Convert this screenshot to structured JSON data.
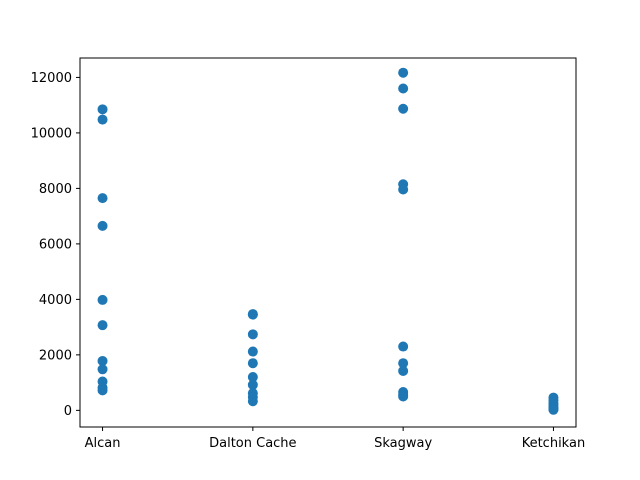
{
  "chart_data": {
    "type": "scatter",
    "categories": [
      "Alcan",
      "Dalton Cache",
      "Skagway",
      "Ketchikan"
    ],
    "series": [
      {
        "color": "#1f77b4",
        "points": [
          {
            "x": "Alcan",
            "y": 10850
          },
          {
            "x": "Alcan",
            "y": 10480
          },
          {
            "x": "Alcan",
            "y": 7650
          },
          {
            "x": "Alcan",
            "y": 6650
          },
          {
            "x": "Alcan",
            "y": 3980
          },
          {
            "x": "Alcan",
            "y": 3070
          },
          {
            "x": "Alcan",
            "y": 1780
          },
          {
            "x": "Alcan",
            "y": 1480
          },
          {
            "x": "Alcan",
            "y": 1040
          },
          {
            "x": "Alcan",
            "y": 820
          },
          {
            "x": "Alcan",
            "y": 720
          },
          {
            "x": "Dalton Cache",
            "y": 3470
          },
          {
            "x": "Dalton Cache",
            "y": 3450
          },
          {
            "x": "Dalton Cache",
            "y": 2740
          },
          {
            "x": "Dalton Cache",
            "y": 2120
          },
          {
            "x": "Dalton Cache",
            "y": 1700
          },
          {
            "x": "Dalton Cache",
            "y": 1200
          },
          {
            "x": "Dalton Cache",
            "y": 920
          },
          {
            "x": "Dalton Cache",
            "y": 620
          },
          {
            "x": "Dalton Cache",
            "y": 480
          },
          {
            "x": "Dalton Cache",
            "y": 330
          },
          {
            "x": "Skagway",
            "y": 12170
          },
          {
            "x": "Skagway",
            "y": 11600
          },
          {
            "x": "Skagway",
            "y": 10870
          },
          {
            "x": "Skagway",
            "y": 8150
          },
          {
            "x": "Skagway",
            "y": 7960
          },
          {
            "x": "Skagway",
            "y": 2300
          },
          {
            "x": "Skagway",
            "y": 1700
          },
          {
            "x": "Skagway",
            "y": 1420
          },
          {
            "x": "Skagway",
            "y": 660
          },
          {
            "x": "Skagway",
            "y": 560
          },
          {
            "x": "Skagway",
            "y": 500
          },
          {
            "x": "Ketchikan",
            "y": 460
          },
          {
            "x": "Ketchikan",
            "y": 360
          },
          {
            "x": "Ketchikan",
            "y": 260
          },
          {
            "x": "Ketchikan",
            "y": 180
          },
          {
            "x": "Ketchikan",
            "y": 100
          },
          {
            "x": "Ketchikan",
            "y": 50
          },
          {
            "x": "Ketchikan",
            "y": 20
          }
        ]
      }
    ],
    "y_ticks": [
      0,
      2000,
      4000,
      6000,
      8000,
      10000,
      12000
    ],
    "ylim": [
      -600,
      12700
    ],
    "grid": false,
    "legend": "none"
  }
}
